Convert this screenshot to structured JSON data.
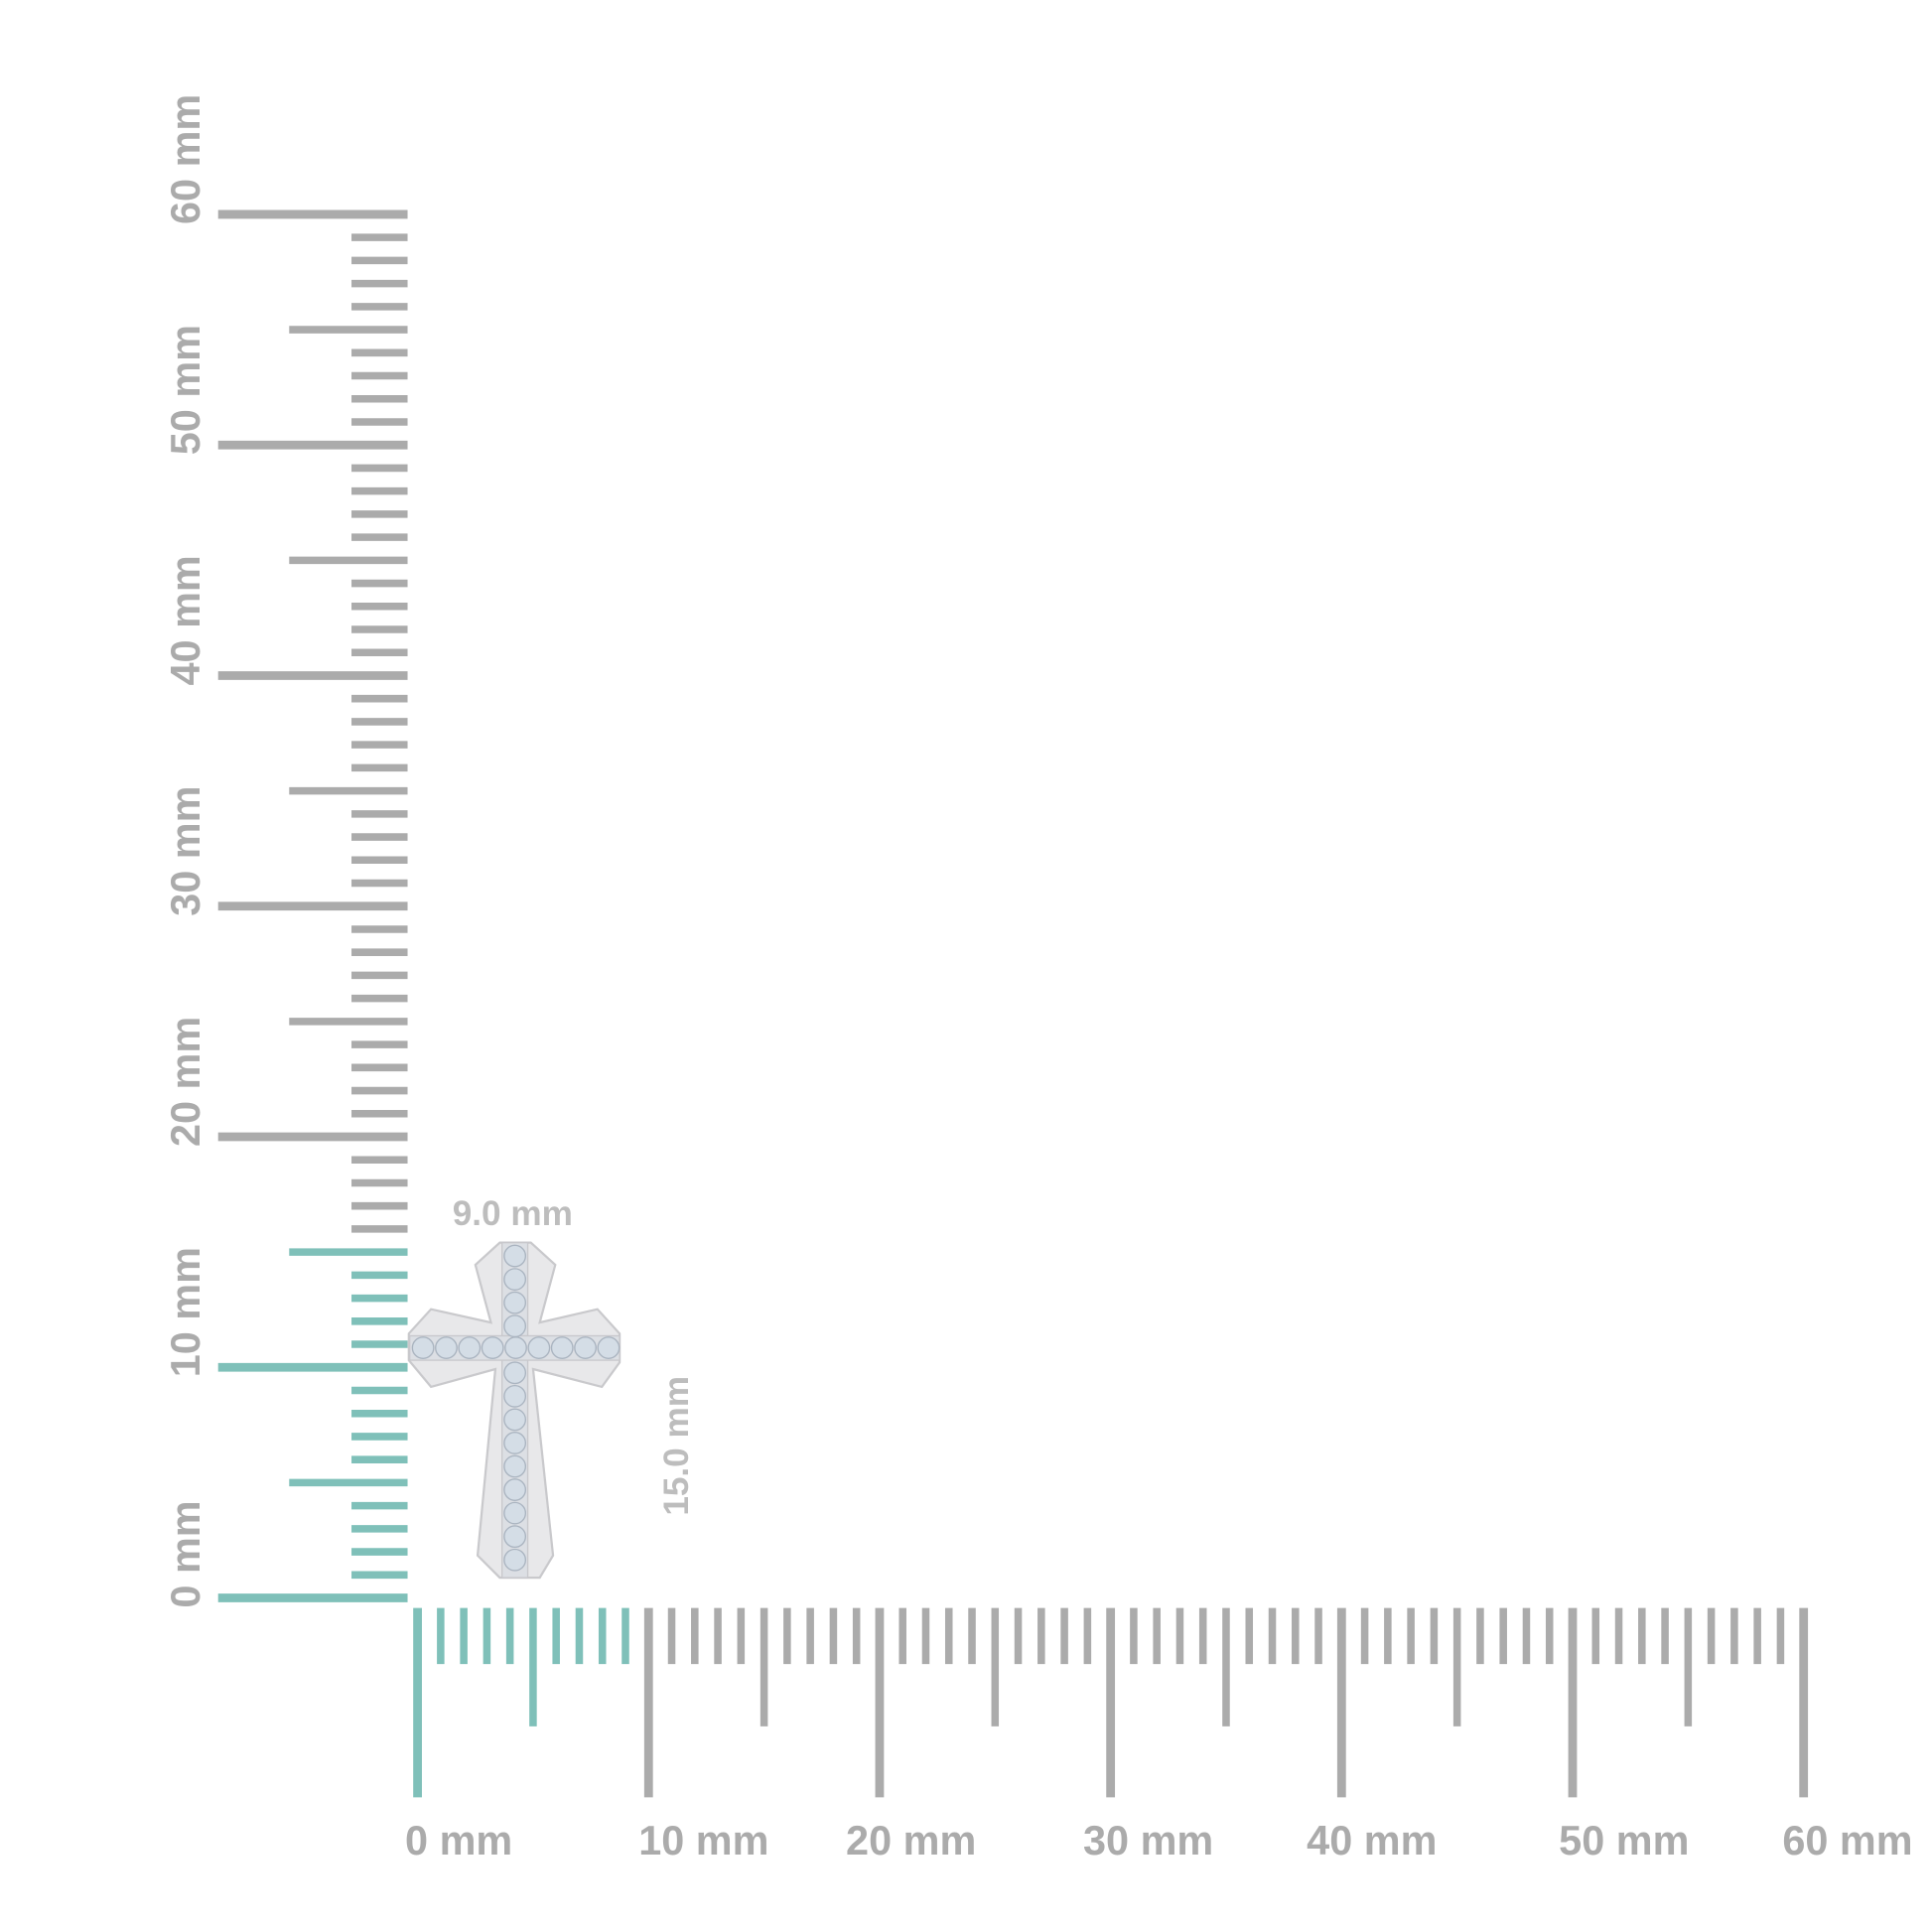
{
  "colors": {
    "tick": "#ababab",
    "highlight": "#7fc0b9",
    "label": "#ababab",
    "dimension_label": "#bdbdbd",
    "metal": "#e6e6e8",
    "stone": "#d4dde6"
  },
  "vertical_ruler": {
    "labels": [
      "0 mm",
      "10 mm",
      "20 mm",
      "30 mm",
      "40 mm",
      "50 mm",
      "60 mm"
    ],
    "range_mm": [
      0,
      60
    ],
    "highlight_mm": 15
  },
  "horizontal_ruler": {
    "labels": [
      "0 mm",
      "10 mm",
      "20 mm",
      "30 mm",
      "40 mm",
      "50 mm",
      "60 mm"
    ],
    "range_mm": [
      0,
      60
    ],
    "highlight_mm": 9
  },
  "item": {
    "name_icon": "cross-pendant",
    "width_label": "9.0 mm",
    "height_label": "15.0 mm"
  }
}
